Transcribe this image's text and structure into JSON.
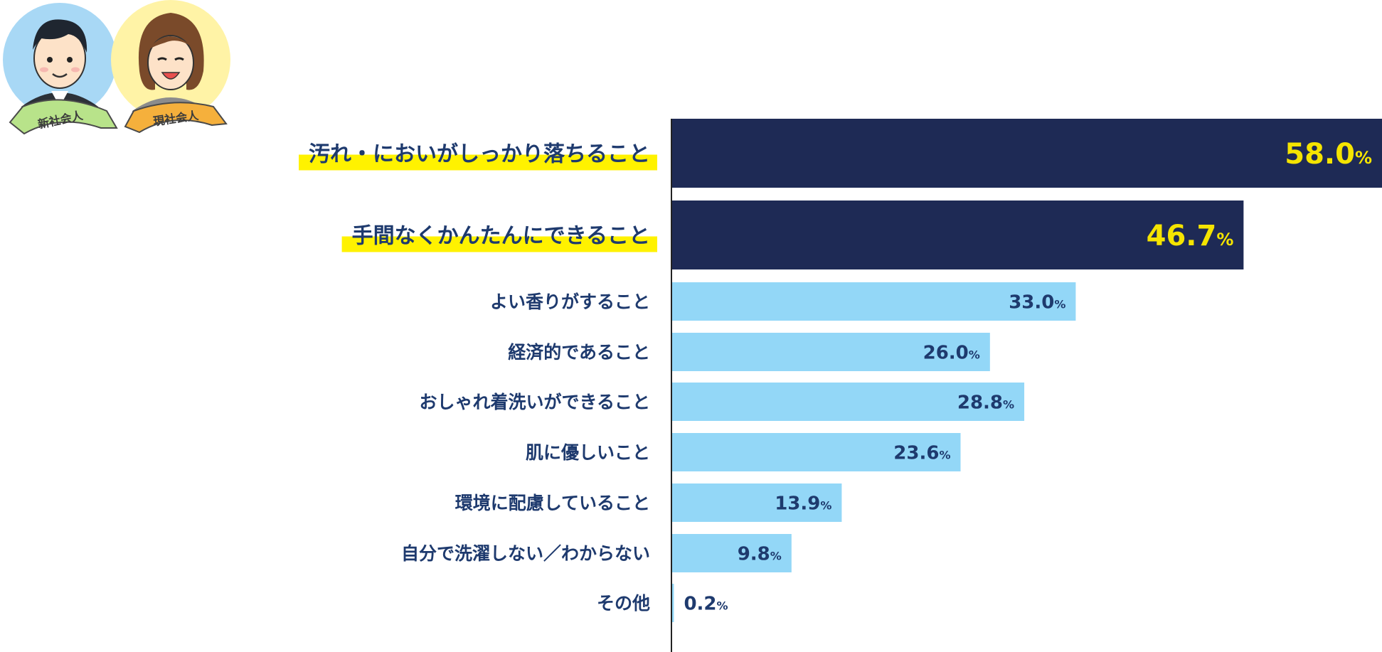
{
  "badges": [
    {
      "label": "新社会人",
      "circle_color": "#a8d8f5",
      "ribbon_color": "#b8e38a"
    },
    {
      "label": "現社会人",
      "circle_color": "#fff3a6",
      "ribbon_color": "#f5b03c"
    }
  ],
  "colors": {
    "highlight_bar": "#1e2a55",
    "normal_bar": "#93d7f7",
    "highlight_value": "#f5e400",
    "normal_value": "#1e3a6e",
    "label_text": "#1e3a6e",
    "label_highlight": "#fff200"
  },
  "chart_data": {
    "type": "bar",
    "orientation": "horizontal",
    "unit": "%",
    "xlim": [
      0,
      58
    ],
    "categories": [
      "汚れ・においがしっかり落ちること",
      "手間なくかんたんにできること",
      "よい香りがすること",
      "経済的であること",
      "おしゃれ着洗いができること",
      "肌に優しいこと",
      "環境に配慮していること",
      "自分で洗濯しない／わからない",
      "その他"
    ],
    "values": [
      58.0,
      46.7,
      33.0,
      26.0,
      28.8,
      23.6,
      13.9,
      9.8,
      0.2
    ],
    "value_labels": [
      "58.0",
      "46.7",
      "33.0",
      "26.0",
      "28.8",
      "23.6",
      "13.9",
      "9.8",
      "0.2"
    ],
    "highlighted": [
      true,
      true,
      false,
      false,
      false,
      false,
      false,
      false,
      false
    ],
    "grid": false,
    "legend": "none"
  }
}
